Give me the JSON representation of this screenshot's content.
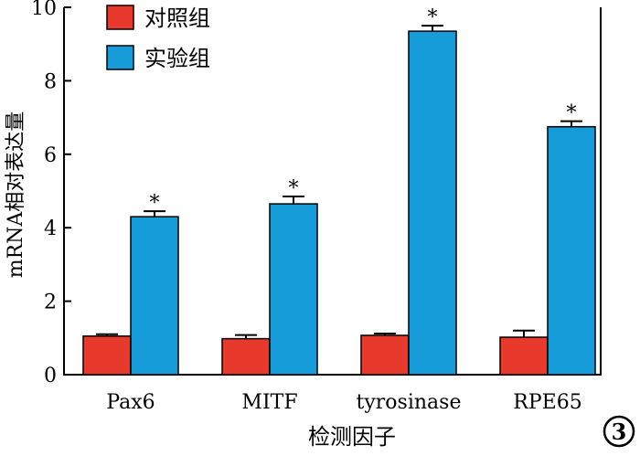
{
  "chart_data": {
    "type": "bar",
    "title": "",
    "xlabel": "检测因子",
    "ylabel": "mRNA相对表达量",
    "categories": [
      "Pax6",
      "MITF",
      "tyrosinase",
      "RPE65"
    ],
    "ylim": [
      0,
      10
    ],
    "yticks": [
      0,
      2,
      4,
      6,
      8,
      10
    ],
    "grid": false,
    "legend_position": "top-left",
    "series": [
      {
        "name": "对照组",
        "color": "#e83a2c",
        "values": [
          1.05,
          0.98,
          1.07,
          1.02
        ],
        "errors": [
          0.05,
          0.1,
          0.05,
          0.18
        ]
      },
      {
        "name": "实验组",
        "color": "#169cd8",
        "values": [
          4.3,
          4.65,
          9.35,
          6.75
        ],
        "errors": [
          0.15,
          0.2,
          0.15,
          0.15
        ]
      }
    ],
    "significance_marker": "*",
    "panel_label": "3"
  }
}
